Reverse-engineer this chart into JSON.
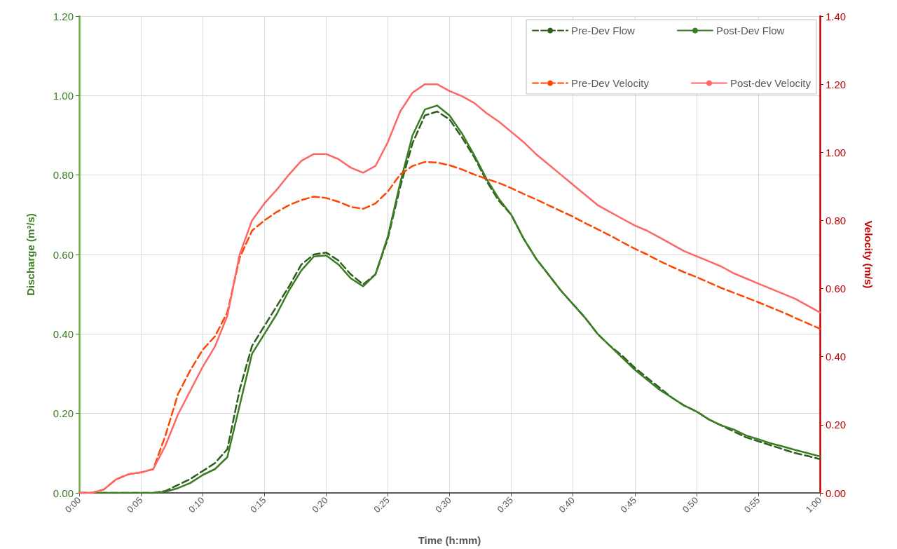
{
  "chart_data": {
    "type": "line",
    "xlabel": "Time (h:mm)",
    "ylabel": "Discharge (m³/s)",
    "y2label": "Velocity (m/s)",
    "categories": [
      "0:00",
      null,
      null,
      null,
      null,
      "0:05",
      null,
      null,
      null,
      null,
      "0:10",
      null,
      null,
      null,
      null,
      "0:15",
      null,
      null,
      null,
      null,
      "0:20",
      null,
      null,
      null,
      null,
      "0:25",
      null,
      null,
      null,
      null,
      "0:30",
      null,
      null,
      null,
      null,
      "0:35",
      null,
      null,
      null,
      null,
      "0:40",
      null,
      null,
      null,
      null,
      "0:45",
      null,
      null,
      null,
      null,
      "0:50",
      null,
      null,
      null,
      null,
      "0:55",
      null,
      null,
      null,
      null,
      "1:00"
    ],
    "ylim": [
      0,
      1.2
    ],
    "yticks": [
      {
        "value": 0,
        "label": "0.00"
      },
      {
        "value": 0.2,
        "label": "0.20"
      },
      {
        "value": 0.4,
        "label": "0.40"
      },
      {
        "value": 0.6,
        "label": "0.60"
      },
      {
        "value": 0.8,
        "label": "0.80"
      },
      {
        "value": 1.0,
        "label": "1.00"
      },
      {
        "value": 1.2,
        "label": "1.20"
      }
    ],
    "y2lim": [
      0,
      1.4
    ],
    "y2ticks": [
      {
        "value": 0,
        "label": "0.00"
      },
      {
        "value": 0.2,
        "label": "0.20"
      },
      {
        "value": 0.4,
        "label": "0.40"
      },
      {
        "value": 0.6,
        "label": "0.60"
      },
      {
        "value": 0.8,
        "label": "0.80"
      },
      {
        "value": 1.0,
        "label": "1.00"
      },
      {
        "value": 1.2,
        "label": "1.20"
      },
      {
        "value": 1.4,
        "label": "1.40"
      }
    ],
    "grid": true,
    "legend": "top right",
    "marker": "none",
    "series": [
      {
        "name": "Pre-Dev Flow",
        "color": "#2e5e1e",
        "line_style": "dashed",
        "values": [
          0,
          0,
          0,
          0,
          0,
          0,
          0,
          0.005,
          0.02,
          0.035,
          0.055,
          0.075,
          0.11,
          0.26,
          0.37,
          0.42,
          0.47,
          0.52,
          0.575,
          0.6,
          0.605,
          0.585,
          0.55,
          0.525,
          0.55,
          0.64,
          0.77,
          0.88,
          0.95,
          0.96,
          0.94,
          0.895,
          0.845,
          0.785,
          0.735,
          0.7,
          0.64,
          0.59,
          0.55,
          0.51,
          0.475,
          0.44,
          0.4,
          0.37,
          0.345,
          0.315,
          0.29,
          0.265,
          0.24,
          0.22,
          0.205,
          0.185,
          0.17,
          0.155,
          0.14,
          0.13,
          0.12,
          0.11,
          0.1,
          0.093,
          0.085
        ]
      },
      {
        "name": "Post-Dev Flow",
        "color": "#3a7d22",
        "line_style": "solid",
        "values": [
          0,
          0,
          0,
          0,
          0,
          0,
          0,
          0.003,
          0.012,
          0.025,
          0.045,
          0.06,
          0.09,
          0.22,
          0.35,
          0.4,
          0.45,
          0.51,
          0.56,
          0.595,
          0.598,
          0.575,
          0.54,
          0.52,
          0.55,
          0.645,
          0.78,
          0.9,
          0.965,
          0.975,
          0.95,
          0.905,
          0.85,
          0.79,
          0.74,
          0.7,
          0.64,
          0.59,
          0.55,
          0.51,
          0.475,
          0.44,
          0.4,
          0.37,
          0.34,
          0.31,
          0.285,
          0.26,
          0.24,
          0.22,
          0.205,
          0.185,
          0.17,
          0.16,
          0.145,
          0.135,
          0.125,
          0.117,
          0.108,
          0.1,
          0.092
        ]
      },
      {
        "name": "Pre-Dev Velocity",
        "color": "#ff4500",
        "line_style": "dashed",
        "axis": "y2",
        "values": [
          0,
          0,
          0.01,
          0.04,
          0.055,
          0.06,
          0.07,
          0.17,
          0.29,
          0.36,
          0.42,
          0.46,
          0.53,
          0.69,
          0.77,
          0.8,
          0.825,
          0.845,
          0.86,
          0.87,
          0.866,
          0.855,
          0.84,
          0.834,
          0.85,
          0.885,
          0.935,
          0.96,
          0.972,
          0.97,
          0.962,
          0.95,
          0.935,
          0.922,
          0.91,
          0.895,
          0.878,
          0.862,
          0.845,
          0.828,
          0.811,
          0.792,
          0.774,
          0.756,
          0.736,
          0.717,
          0.7,
          0.681,
          0.664,
          0.648,
          0.634,
          0.618,
          0.602,
          0.588,
          0.574,
          0.56,
          0.545,
          0.53,
          0.514,
          0.498,
          0.482
        ]
      },
      {
        "name": "Post-dev Velocity",
        "color": "#ff6666",
        "line_style": "solid",
        "axis": "y2",
        "values": [
          0,
          0,
          0.01,
          0.04,
          0.055,
          0.06,
          0.07,
          0.14,
          0.23,
          0.3,
          0.37,
          0.43,
          0.52,
          0.7,
          0.8,
          0.85,
          0.89,
          0.935,
          0.975,
          0.995,
          0.995,
          0.98,
          0.955,
          0.94,
          0.96,
          1.03,
          1.12,
          1.175,
          1.2,
          1.2,
          1.18,
          1.165,
          1.145,
          1.115,
          1.09,
          1.06,
          1.03,
          0.995,
          0.965,
          0.935,
          0.905,
          0.875,
          0.845,
          0.825,
          0.805,
          0.785,
          0.77,
          0.75,
          0.73,
          0.71,
          0.695,
          0.68,
          0.665,
          0.645,
          0.63,
          0.615,
          0.6,
          0.585,
          0.57,
          0.55,
          0.53
        ]
      }
    ]
  }
}
